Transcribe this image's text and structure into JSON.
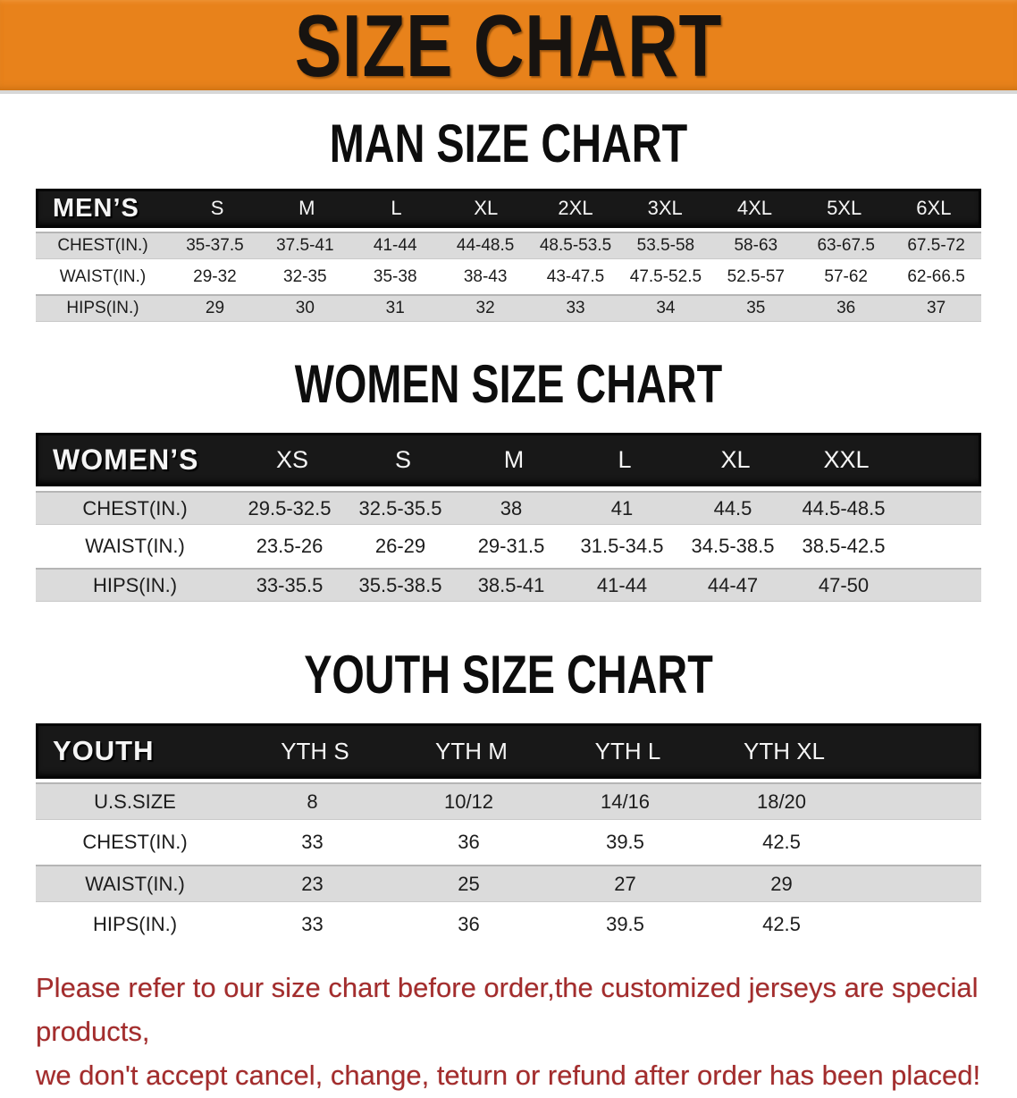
{
  "banner": {
    "title": "SIZE CHART"
  },
  "sections": [
    {
      "title": "MAN SIZE CHART",
      "table": {
        "header_label": "MEN’S",
        "columns": [
          "S",
          "M",
          "L",
          "XL",
          "2XL",
          "3XL",
          "4XL",
          "5XL",
          "6XL"
        ],
        "rows": [
          {
            "label": "CHEST(IN.)",
            "values": [
              "35-37.5",
              "37.5-41",
              "41-44",
              "44-48.5",
              "48.5-53.5",
              "53.5-58",
              "58-63",
              "63-67.5",
              "67.5-72"
            ]
          },
          {
            "label": "WAIST(IN.)",
            "values": [
              "29-32",
              "32-35",
              "35-38",
              "38-43",
              "43-47.5",
              "47.5-52.5",
              "52.5-57",
              "57-62",
              "62-66.5"
            ]
          },
          {
            "label": "HIPS(IN.)",
            "values": [
              "29",
              "30",
              "31",
              "32",
              "33",
              "34",
              "35",
              "36",
              "37"
            ]
          }
        ]
      }
    },
    {
      "title": "WOMEN SIZE CHART",
      "table": {
        "header_label": "WOMEN’S",
        "columns": [
          "XS",
          "S",
          "M",
          "L",
          "XL",
          "XXL"
        ],
        "rows": [
          {
            "label": "CHEST(IN.)",
            "values": [
              "29.5-32.5",
              "32.5-35.5",
              "38",
              "41",
              "44.5",
              "44.5-48.5"
            ]
          },
          {
            "label": "WAIST(IN.)",
            "values": [
              "23.5-26",
              "26-29",
              "29-31.5",
              "31.5-34.5",
              "34.5-38.5",
              "38.5-42.5"
            ]
          },
          {
            "label": "HIPS(IN.)",
            "values": [
              "33-35.5",
              "35.5-38.5",
              "38.5-41",
              "41-44",
              "44-47",
              "47-50"
            ]
          }
        ]
      }
    },
    {
      "title": "YOUTH SIZE CHART",
      "table": {
        "header_label": "YOUTH",
        "columns": [
          "YTH S",
          "YTH M",
          "YTH L",
          "YTH XL"
        ],
        "rows": [
          {
            "label": "U.S.SIZE",
            "values": [
              "8",
              "10/12",
              "14/16",
              "18/20"
            ]
          },
          {
            "label": "CHEST(IN.)",
            "values": [
              "33",
              "36",
              "39.5",
              "42.5"
            ]
          },
          {
            "label": "WAIST(IN.)",
            "values": [
              "23",
              "25",
              "27",
              "29"
            ]
          },
          {
            "label": "HIPS(IN.)",
            "values": [
              "33",
              "36",
              "39.5",
              "42.5"
            ]
          }
        ]
      }
    }
  ],
  "disclaimer": {
    "line1": "Please refer to our size chart before order,the customized jerseys are special products,",
    "line2": "we don't accept cancel, change, teturn or refund after order has been placed!"
  },
  "colors": {
    "banner_bg": "#e8821b",
    "header_bar": "#181818",
    "row_gray": "#dbdbdb",
    "disclaimer_red": "#a32c2c"
  }
}
